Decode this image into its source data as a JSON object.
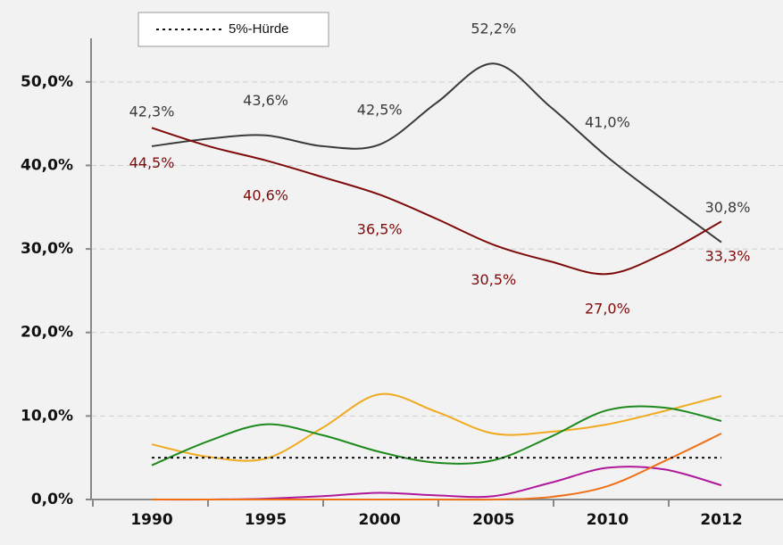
{
  "chart_data": {
    "type": "line",
    "categories": [
      "1990",
      null,
      "1995",
      null,
      "2000",
      null,
      "2005",
      null,
      "2010",
      null,
      "2012"
    ],
    "ylim": [
      0,
      55
    ],
    "yticks": [
      {
        "value": 0,
        "label": "0,0%"
      },
      {
        "value": 10,
        "label": "10,0%"
      },
      {
        "value": 20,
        "label": "20,0%"
      },
      {
        "value": 30,
        "label": "30,0%"
      },
      {
        "value": 40,
        "label": "40,0%"
      },
      {
        "value": 50,
        "label": "50,0%"
      }
    ],
    "grid": true,
    "smooth": true,
    "series": [
      {
        "color": "#3a3a3a",
        "values": [
          42.3,
          43.2,
          43.6,
          42.3,
          42.5,
          47.5,
          52.2,
          47.0,
          41.0,
          35.8,
          30.8
        ],
        "value_labels": [
          "42,3%",
          null,
          "43,6%",
          null,
          "42,5%",
          null,
          "52,2%",
          null,
          "41,0%",
          null,
          "30,8%"
        ],
        "label_position": "above"
      },
      {
        "color": "#7f0a0a",
        "values": [
          44.5,
          42.3,
          40.6,
          38.6,
          36.5,
          33.6,
          30.5,
          28.5,
          27.0,
          29.5,
          33.3
        ],
        "value_labels": [
          "44,5%",
          null,
          "40,6%",
          null,
          "36,5%",
          null,
          "30,5%",
          null,
          "27,0%",
          null,
          "33,3%"
        ],
        "label_position": "below"
      },
      {
        "color": "#f0aa1e",
        "values": [
          6.6,
          5.1,
          4.9,
          8.6,
          12.6,
          10.5,
          7.9,
          8.1,
          9.0,
          10.6,
          12.4
        ]
      },
      {
        "color": "#1e8a1e",
        "values": [
          4.1,
          7.0,
          9.0,
          7.7,
          5.7,
          4.4,
          4.7,
          7.5,
          10.7,
          11.0,
          9.4
        ]
      },
      {
        "color": "#b0189a",
        "values": [
          0,
          0,
          0.1,
          0.4,
          0.8,
          0.5,
          0.4,
          2.0,
          3.8,
          3.6,
          1.7
        ]
      },
      {
        "color": "#f07018",
        "values": [
          0,
          0,
          0,
          0,
          0,
          0,
          0,
          0.3,
          1.6,
          4.6,
          7.9
        ]
      },
      {
        "name": "5%-Hürde",
        "color": "#111111",
        "dashed": true,
        "values": [
          5,
          5,
          5,
          5,
          5,
          5,
          5,
          5,
          5,
          5,
          5
        ]
      }
    ]
  }
}
